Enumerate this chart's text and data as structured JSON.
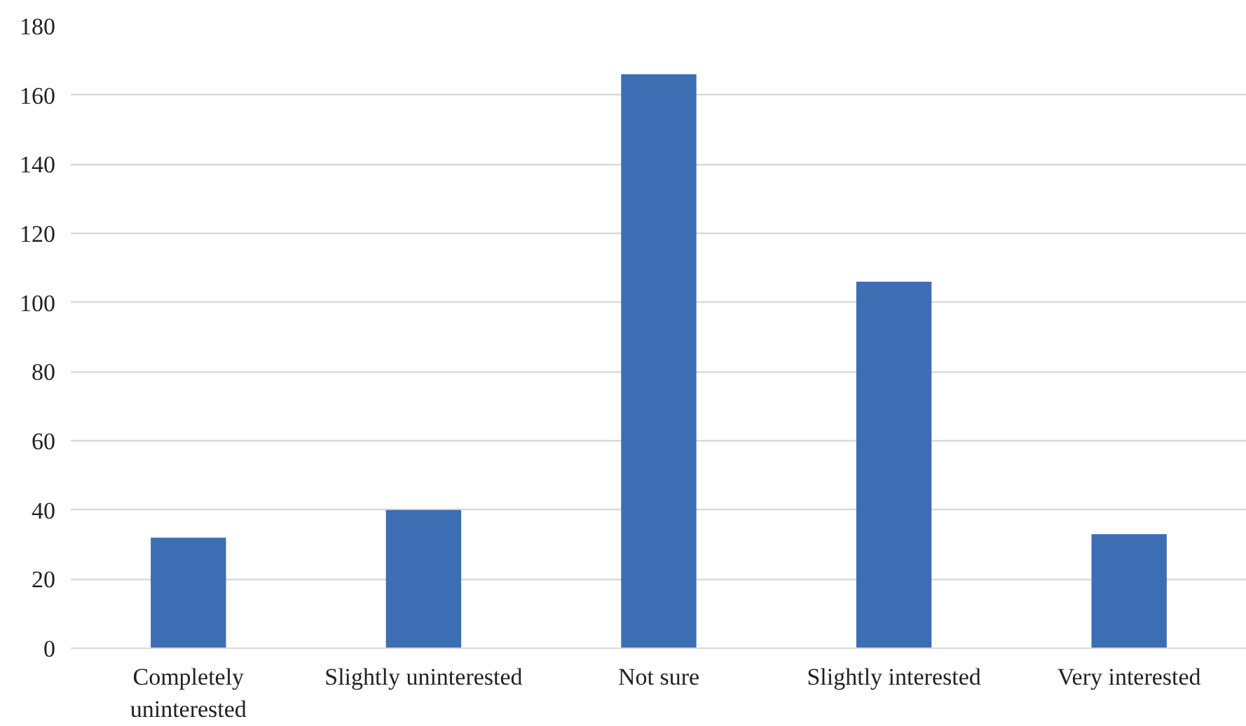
{
  "chart_data": {
    "type": "bar",
    "categories": [
      "Completely uninterested",
      "Slightly uninterested",
      "Not sure",
      "Slightly interested",
      "Very interested"
    ],
    "values": [
      32,
      40,
      166,
      106,
      33
    ],
    "color": "#3d6eb4",
    "ylim": [
      0,
      180
    ],
    "yticks": [
      0,
      20,
      40,
      60,
      80,
      100,
      120,
      140,
      160,
      180
    ],
    "grid": "y"
  }
}
